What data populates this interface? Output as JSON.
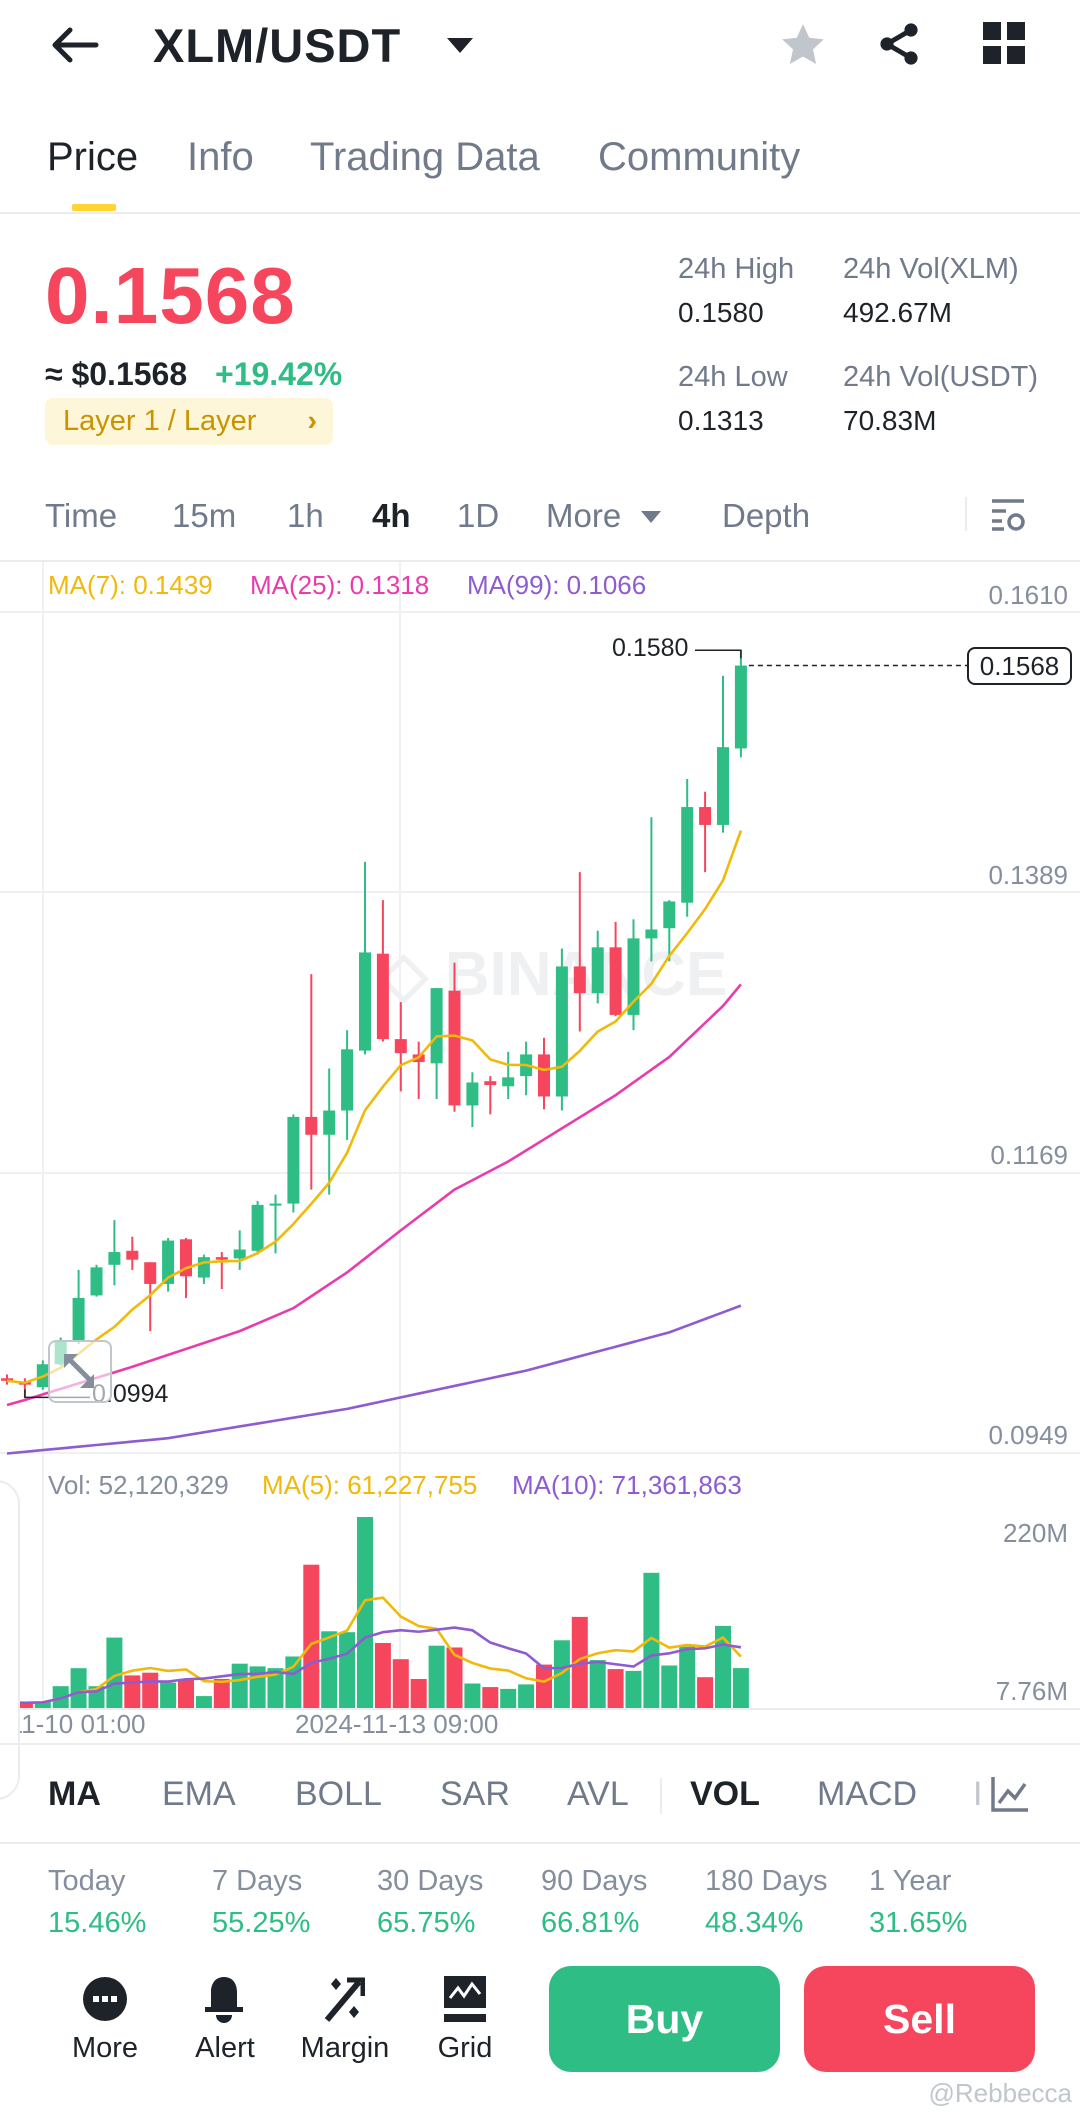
{
  "header": {
    "title": "XLM/USDT",
    "icons": [
      "back-arrow-icon",
      "caret-down-icon",
      "star-icon",
      "share-icon",
      "grid-icon"
    ]
  },
  "tabs": [
    {
      "label": "Price"
    },
    {
      "label": "Info"
    },
    {
      "label": "Trading Data"
    },
    {
      "label": "Community"
    }
  ],
  "ticker": {
    "price": "0.1568",
    "fiat": "≈ $0.1568",
    "change": "+19.42%",
    "tag": "Layer 1 / Layer",
    "tag_arrow": "›",
    "high_label": "24h High",
    "high": "0.1580",
    "low_label": "24h Low",
    "low": "0.1313",
    "vol_base_label": "24h Vol(XLM)",
    "vol_base": "492.67M",
    "vol_quote_label": "24h Vol(USDT)",
    "vol_quote": "70.83M"
  },
  "intervals": [
    {
      "label": "Time"
    },
    {
      "label": "15m"
    },
    {
      "label": "1h"
    },
    {
      "label": "4h"
    },
    {
      "label": "1D"
    },
    {
      "label": "More"
    },
    {
      "label": "Depth"
    }
  ],
  "colors": {
    "up": "#2EBD85",
    "down": "#F6465D",
    "ma7": "#F0B90B",
    "ma25": "#E93CAC",
    "ma99": "#8E5CD0",
    "accent": "#FCD535"
  },
  "chart_data": {
    "type": "candlestick",
    "legend": {
      "ma7": "MA(7): 0.1439",
      "ma25": "MA(25): 0.1318",
      "ma99": "MA(99): 0.1066"
    },
    "y_ticks": [
      "0.1610",
      "0.1389",
      "0.1169",
      "0.0949"
    ],
    "ylim": [
      0.0949,
      0.161
    ],
    "high_marker": "0.1580",
    "low_marker": "0.0994",
    "last_price": "0.1568",
    "x_ticks": [
      "-11-10 01:00",
      "2024-11-13 09:00"
    ],
    "candles": [
      [
        0.1009,
        0.1007,
        0.1012,
        0.1004
      ],
      [
        0.1006,
        0.1004,
        0.1009,
        0.0994
      ],
      [
        0.1002,
        0.102,
        0.1023,
        0.1
      ],
      [
        0.102,
        0.1038,
        0.1041,
        0.1019
      ],
      [
        0.1038,
        0.1072,
        0.1094,
        0.1036
      ],
      [
        0.1074,
        0.1096,
        0.1098,
        0.1073
      ],
      [
        0.1098,
        0.1108,
        0.1133,
        0.1082
      ],
      [
        0.1109,
        0.1102,
        0.112,
        0.1094
      ],
      [
        0.11,
        0.1083,
        0.11,
        0.1046
      ],
      [
        0.1083,
        0.1117,
        0.1119,
        0.1077
      ],
      [
        0.1118,
        0.1089,
        0.1119,
        0.1072
      ],
      [
        0.1088,
        0.1104,
        0.1106,
        0.1083
      ],
      [
        0.1104,
        0.1102,
        0.1108,
        0.1079
      ],
      [
        0.1103,
        0.111,
        0.1125,
        0.1094
      ],
      [
        0.1109,
        0.1145,
        0.1148,
        0.1106
      ],
      [
        0.1145,
        0.1146,
        0.1153,
        0.1107
      ],
      [
        0.1146,
        0.1214,
        0.1216,
        0.1139
      ],
      [
        0.1214,
        0.12,
        0.1326,
        0.1157
      ],
      [
        0.12,
        0.1219,
        0.1252,
        0.1153
      ],
      [
        0.1219,
        0.1267,
        0.1282,
        0.1196
      ],
      [
        0.1266,
        0.1343,
        0.1414,
        0.1263
      ],
      [
        0.1342,
        0.1275,
        0.1384,
        0.1273
      ],
      [
        0.1275,
        0.1264,
        0.1304,
        0.1234
      ],
      [
        0.1263,
        0.1257,
        0.1273,
        0.1228
      ],
      [
        0.1256,
        0.1315,
        0.1315,
        0.1228
      ],
      [
        0.1313,
        0.1223,
        0.1335,
        0.1218
      ],
      [
        0.1223,
        0.1241,
        0.1249,
        0.1206
      ],
      [
        0.1242,
        0.1239,
        0.1246,
        0.1216
      ],
      [
        0.1238,
        0.1245,
        0.1265,
        0.1228
      ],
      [
        0.1246,
        0.1263,
        0.1273,
        0.1231
      ],
      [
        0.1263,
        0.123,
        0.1276,
        0.122
      ],
      [
        0.123,
        0.1332,
        0.1346,
        0.1219
      ],
      [
        0.1332,
        0.1311,
        0.1406,
        0.1281
      ],
      [
        0.1311,
        0.1347,
        0.136,
        0.1303
      ],
      [
        0.1347,
        0.1294,
        0.1367,
        0.1293
      ],
      [
        0.1294,
        0.1354,
        0.1369,
        0.1282
      ],
      [
        0.1354,
        0.1361,
        0.1449,
        0.1336
      ],
      [
        0.1362,
        0.1383,
        0.1384,
        0.1336
      ],
      [
        0.1382,
        0.1457,
        0.1479,
        0.1371
      ],
      [
        0.1457,
        0.1443,
        0.1469,
        0.1406
      ],
      [
        0.1443,
        0.1504,
        0.156,
        0.1437
      ],
      [
        0.1503,
        0.1568,
        0.158,
        0.1496
      ]
    ],
    "ma25": [
      [
        0,
        0.0988
      ],
      [
        1,
        0.0992
      ],
      [
        7,
        0.1018
      ],
      [
        13,
        0.1046
      ],
      [
        16,
        0.1064
      ],
      [
        19,
        0.1092
      ],
      [
        22,
        0.1125
      ],
      [
        25,
        0.1157
      ],
      [
        28,
        0.1179
      ],
      [
        31,
        0.1205
      ],
      [
        34,
        0.1231
      ],
      [
        37,
        0.1261
      ],
      [
        40,
        0.1301
      ],
      [
        41,
        0.1318
      ]
    ],
    "ma99": [
      [
        0,
        0.095
      ],
      [
        9,
        0.0962
      ],
      [
        19,
        0.0985
      ],
      [
        29,
        0.1015
      ],
      [
        37,
        0.1045
      ],
      [
        41,
        0.1066
      ]
    ],
    "volume": {
      "legend": {
        "vol": "Vol: 52,120,329",
        "ma5": "MA(5): 61,227,755",
        "ma10": "MA(10): 71,361,863"
      },
      "y_ticks": [
        "220M",
        "7.76M"
      ],
      "values_m": [
        14,
        13,
        15,
        32,
        52,
        32,
        86,
        44,
        47,
        36,
        40,
        21,
        40,
        57,
        54,
        52,
        65,
        167,
        93,
        92,
        220,
        80,
        62,
        40,
        77,
        75,
        35,
        31,
        29,
        34,
        56,
        83,
        109,
        61,
        51,
        49,
        158,
        55,
        76,
        42,
        99,
        52.1
      ]
    }
  },
  "indicators": [
    {
      "label": "MA"
    },
    {
      "label": "EMA"
    },
    {
      "label": "BOLL"
    },
    {
      "label": "SAR"
    },
    {
      "label": "AVL"
    },
    {
      "label": "VOL"
    },
    {
      "label": "MACD"
    },
    {
      "label": "I"
    }
  ],
  "performance": [
    {
      "label": "Today",
      "value": "15.46%"
    },
    {
      "label": "7 Days",
      "value": "55.25%"
    },
    {
      "label": "30 Days",
      "value": "65.75%"
    },
    {
      "label": "90 Days",
      "value": "66.81%"
    },
    {
      "label": "180 Days",
      "value": "48.34%"
    },
    {
      "label": "1 Year",
      "value": "31.65%"
    }
  ],
  "bottom_nav": [
    {
      "label": "More",
      "icon": "more-icon"
    },
    {
      "label": "Alert",
      "icon": "bell-icon"
    },
    {
      "label": "Margin",
      "icon": "percent-icon"
    },
    {
      "label": "Grid",
      "icon": "grid-trading-icon"
    }
  ],
  "actions": {
    "buy": "Buy",
    "sell": "Sell"
  },
  "watermark": "@Rebbecca"
}
